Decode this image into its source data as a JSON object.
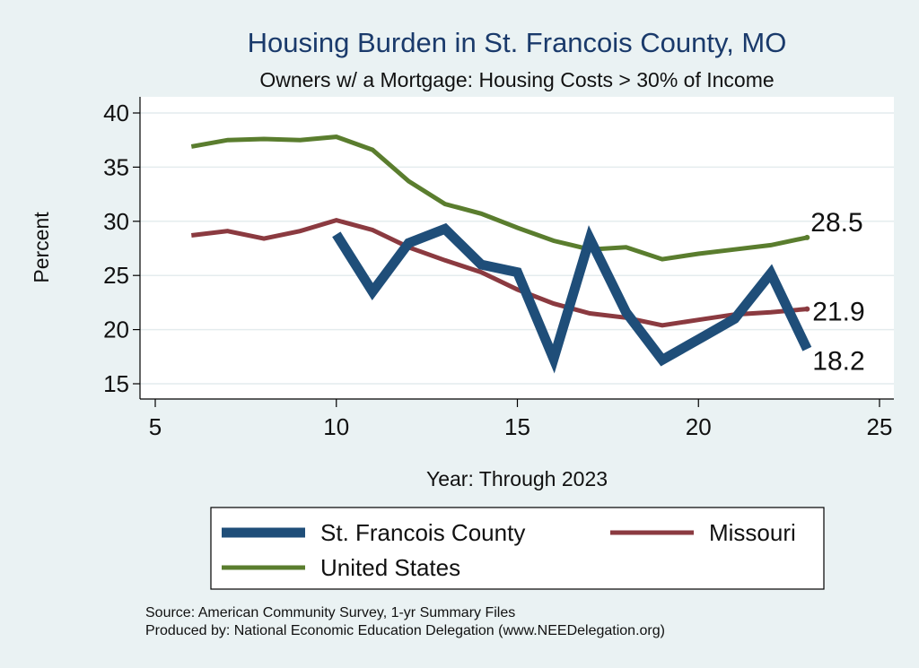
{
  "chart_data": {
    "type": "line",
    "title": "Housing Burden in St. Francois County, MO",
    "subtitle": "Owners w/ a Mortgage: Housing Costs > 30% of Income",
    "xlabel": "Year: Through 2023",
    "ylabel": "Percent",
    "xlim": [
      5,
      25
    ],
    "ylim": [
      14,
      41
    ],
    "xticks": [
      5,
      10,
      15,
      20,
      25
    ],
    "yticks": [
      15,
      20,
      25,
      30,
      35,
      40
    ],
    "grid": true,
    "legend_position": "bottom",
    "series": [
      {
        "name": "St. Francois County",
        "color": "#1f4e79",
        "x": [
          10,
          11,
          12,
          13,
          14,
          15,
          16,
          17,
          18,
          19,
          20,
          21,
          22,
          23
        ],
        "y": [
          28.8,
          23.5,
          28.0,
          29.3,
          26.0,
          25.3,
          17.3,
          28.4,
          21.6,
          17.2,
          19.1,
          21.0,
          25.2,
          18.2
        ],
        "end_label": "18.2"
      },
      {
        "name": "Missouri",
        "color": "#8b3a40",
        "x": [
          6,
          7,
          8,
          9,
          10,
          11,
          12,
          13,
          14,
          15,
          16,
          17,
          18,
          19,
          20,
          21,
          22,
          23
        ],
        "y": [
          28.7,
          29.1,
          28.4,
          29.1,
          30.1,
          29.2,
          27.6,
          26.4,
          25.3,
          23.7,
          22.4,
          21.5,
          21.1,
          20.4,
          20.9,
          21.4,
          21.6,
          21.9
        ],
        "end_label": "21.9"
      },
      {
        "name": "United States",
        "color": "#5a7d2e",
        "x": [
          6,
          7,
          8,
          9,
          10,
          11,
          12,
          13,
          14,
          15,
          16,
          17,
          18,
          19,
          20,
          21,
          22,
          23
        ],
        "y": [
          36.9,
          37.5,
          37.6,
          37.5,
          37.8,
          36.6,
          33.7,
          31.6,
          30.7,
          29.4,
          28.2,
          27.4,
          27.6,
          26.5,
          27.0,
          27.4,
          27.8,
          28.5
        ],
        "end_label": "28.5"
      }
    ]
  },
  "source_lines": [
    "Source: American Community Survey, 1-yr Summary Files",
    "Produced by: National Economic Education Delegation (www.NEEDelegation.org)"
  ]
}
